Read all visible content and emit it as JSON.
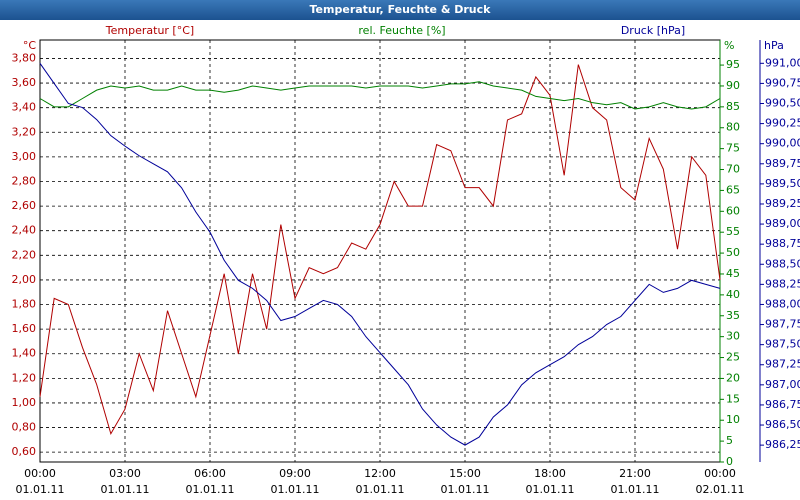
{
  "chart_data": {
    "type": "line",
    "title": "Temperatur, Feuchte & Druck",
    "ylabel": "°C",
    "y2label": "%",
    "y3label": "hPa",
    "grid": true,
    "x": [
      0,
      0.5,
      1,
      1.5,
      2,
      2.5,
      3,
      3.5,
      4,
      4.5,
      5,
      5.5,
      6,
      6.5,
      7,
      7.5,
      8,
      8.5,
      9,
      9.5,
      10,
      10.5,
      11,
      11.5,
      12,
      12.5,
      13,
      13.5,
      14,
      14.5,
      15,
      15.5,
      16,
      16.5,
      17,
      17.5,
      18,
      18.5,
      19,
      19.5,
      20,
      20.5,
      21,
      21.5,
      22,
      22.5,
      23,
      23.5,
      24
    ],
    "xlim": [
      0,
      24
    ],
    "xticks": [
      {
        "value": 0,
        "label": "00:00"
      },
      {
        "value": 3,
        "label": "03:00"
      },
      {
        "value": 6,
        "label": "06:00"
      },
      {
        "value": 9,
        "label": "09:00"
      },
      {
        "value": 12,
        "label": "12:00"
      },
      {
        "value": 15,
        "label": "15:00"
      },
      {
        "value": 18,
        "label": "18:00"
      },
      {
        "value": 21,
        "label": "21:00"
      },
      {
        "value": 24,
        "label": "00:00"
      }
    ],
    "xtick_dates": [
      "01.01.11",
      "01.01.11",
      "01.01.11",
      "01.01.11",
      "01.01.11",
      "01.01.11",
      "01.01.11",
      "01.01.11",
      "02.01.11"
    ],
    "ylim": [
      0.52,
      3.95
    ],
    "yticks": [
      {
        "value": 0.6,
        "label": "0,60"
      },
      {
        "value": 0.8,
        "label": "0,80"
      },
      {
        "value": 1.0,
        "label": "1,00"
      },
      {
        "value": 1.2,
        "label": "1,20"
      },
      {
        "value": 1.4,
        "label": "1,40"
      },
      {
        "value": 1.6,
        "label": "1,60"
      },
      {
        "value": 1.8,
        "label": "1,80"
      },
      {
        "value": 2.0,
        "label": "2,00"
      },
      {
        "value": 2.2,
        "label": "2,20"
      },
      {
        "value": 2.4,
        "label": "2,40"
      },
      {
        "value": 2.6,
        "label": "2,60"
      },
      {
        "value": 2.8,
        "label": "2,80"
      },
      {
        "value": 3.0,
        "label": "3,00"
      },
      {
        "value": 3.2,
        "label": "3,20"
      },
      {
        "value": 3.4,
        "label": "3,40"
      },
      {
        "value": 3.6,
        "label": "3,60"
      },
      {
        "value": 3.8,
        "label": "3,80"
      }
    ],
    "y2lim": [
      0,
      101
    ],
    "y2ticks": [
      0,
      5,
      10,
      15,
      20,
      25,
      30,
      35,
      40,
      45,
      50,
      55,
      60,
      65,
      70,
      75,
      80,
      85,
      90,
      95
    ],
    "y3lim": [
      986.04,
      991.29
    ],
    "y3ticks": [
      {
        "value": 986.25,
        "label": "986,25"
      },
      {
        "value": 986.5,
        "label": "986,50"
      },
      {
        "value": 986.75,
        "label": "986,75"
      },
      {
        "value": 987,
        "label": "987,00"
      },
      {
        "value": 987.25,
        "label": "987,25"
      },
      {
        "value": 987.5,
        "label": "987,50"
      },
      {
        "value": 987.75,
        "label": "987,75"
      },
      {
        "value": 988,
        "label": "988,00"
      },
      {
        "value": 988.25,
        "label": "988,25"
      },
      {
        "value": 988.5,
        "label": "988,50"
      },
      {
        "value": 988.75,
        "label": "988,75"
      },
      {
        "value": 989,
        "label": "989,00"
      },
      {
        "value": 989.25,
        "label": "989,25"
      },
      {
        "value": 989.5,
        "label": "989,50"
      },
      {
        "value": 989.75,
        "label": "989,75"
      },
      {
        "value": 990,
        "label": "990,00"
      },
      {
        "value": 990.25,
        "label": "990,25"
      },
      {
        "value": 990.5,
        "label": "990,50"
      },
      {
        "value": 990.75,
        "label": "990,75"
      },
      {
        "value": 991,
        "label": "991,00"
      }
    ],
    "series": [
      {
        "name": "Temperatur [°C]",
        "color": "#b00000",
        "axis": "y",
        "values": [
          1.05,
          1.85,
          1.8,
          1.45,
          1.15,
          0.75,
          0.95,
          1.4,
          1.1,
          1.75,
          1.4,
          1.05,
          1.55,
          2.05,
          1.4,
          2.05,
          1.6,
          2.45,
          1.85,
          2.1,
          2.05,
          2.1,
          2.3,
          2.25,
          2.45,
          2.8,
          2.6,
          2.6,
          3.1,
          3.05,
          2.75,
          2.75,
          2.6,
          3.3,
          3.35,
          3.65,
          3.5,
          2.85,
          3.75,
          3.4,
          3.3,
          2.75,
          2.65,
          3.15,
          2.9,
          2.25,
          3.0,
          2.85,
          2.0
        ]
      },
      {
        "name": "rel. Feuchte [%]",
        "color": "#008000",
        "axis": "y2",
        "values": [
          87,
          85,
          85,
          87,
          89,
          90,
          89.5,
          90,
          89,
          89,
          90,
          89,
          89,
          88.5,
          89,
          90,
          89.5,
          89,
          89.5,
          90,
          90,
          90,
          90,
          89.5,
          90,
          90,
          90,
          89.5,
          90,
          90.5,
          90.5,
          91,
          90,
          89.5,
          89,
          87.5,
          87,
          86.5,
          87,
          86,
          85.5,
          86,
          84.5,
          85,
          86,
          85,
          84.5,
          85,
          87
        ]
      },
      {
        "name": "Druck [hPa]",
        "color": "#000099",
        "axis": "y3",
        "values": [
          991.0,
          990.75,
          990.5,
          990.45,
          990.3,
          990.1,
          989.97,
          989.85,
          989.75,
          989.65,
          989.45,
          989.15,
          988.9,
          988.55,
          988.3,
          988.2,
          988.05,
          987.8,
          987.85,
          987.95,
          988.05,
          988.0,
          987.85,
          987.6,
          987.4,
          987.2,
          987.0,
          986.7,
          986.5,
          986.35,
          986.25,
          986.35,
          986.6,
          986.75,
          987.0,
          987.15,
          987.25,
          987.35,
          987.5,
          987.6,
          987.75,
          987.85,
          988.05,
          988.25,
          988.15,
          988.2,
          988.3,
          988.25,
          988.2
        ]
      }
    ]
  }
}
